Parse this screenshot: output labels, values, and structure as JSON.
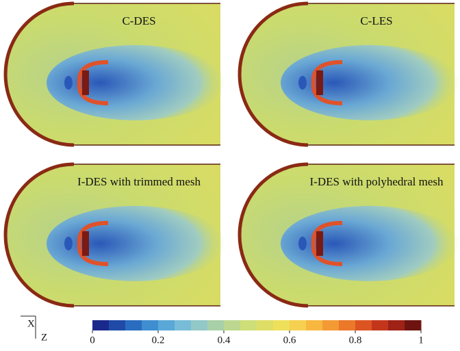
{
  "panels": [
    {
      "label": "C-DES"
    },
    {
      "label": "C-LES"
    },
    {
      "label": "I-DES with trimmed mesh"
    },
    {
      "label": "I-DES with polyhedral mesh"
    }
  ],
  "axes": {
    "x": "X",
    "z": "Z"
  },
  "colorbar": {
    "lim": [
      0,
      1
    ],
    "ticks": [
      0,
      0.2,
      0.4,
      0.6,
      0.8,
      1
    ],
    "colors": [
      "#1a2a8c",
      "#1f4aa8",
      "#2a6cc0",
      "#3e8ed0",
      "#5aa8d8",
      "#78bcd8",
      "#92c8c8",
      "#a8d0a8",
      "#bcd890",
      "#cede78",
      "#dede66",
      "#eee05a",
      "#f6d050",
      "#f8b840",
      "#f49a34",
      "#ec782a",
      "#dc5422",
      "#c4361c",
      "#9e2216",
      "#6e1410"
    ]
  }
}
